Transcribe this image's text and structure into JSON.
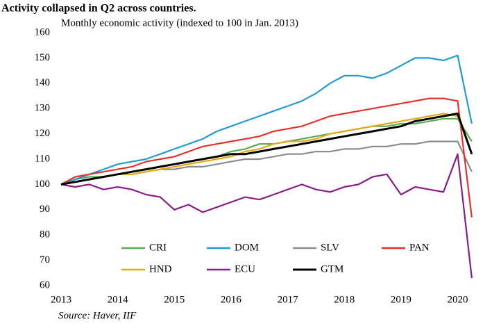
{
  "chart_data": {
    "type": "line",
    "title": "Activity collapsed in Q2 across countries.",
    "subtitle": "Monthly economic activity (indexed to 100 in Jan. 2013)",
    "source": "Source: Haver, IIF",
    "x": [
      2013,
      2013.25,
      2013.5,
      2013.75,
      2014,
      2014.25,
      2014.5,
      2014.75,
      2015,
      2015.25,
      2015.5,
      2015.75,
      2016,
      2016.25,
      2016.5,
      2016.75,
      2017,
      2017.25,
      2017.5,
      2017.75,
      2018,
      2018.25,
      2018.5,
      2018.75,
      2019,
      2019.25,
      2019.5,
      2019.75,
      2020,
      2020.25
    ],
    "series": [
      {
        "name": "CRI",
        "color": "#5aac50",
        "values": [
          100,
          102,
          103,
          103,
          104,
          105,
          106,
          107,
          108,
          109,
          110,
          111,
          113,
          114,
          116,
          116,
          117,
          118,
          119,
          120,
          121,
          122,
          123,
          123,
          124,
          124,
          125,
          126,
          126,
          117
        ]
      },
      {
        "name": "DOM",
        "color": "#1f9bd7",
        "values": [
          100,
          102,
          104,
          106,
          108,
          109,
          110,
          112,
          114,
          116,
          118,
          121,
          123,
          125,
          127,
          129,
          131,
          133,
          136,
          140,
          143,
          143,
          142,
          144,
          147,
          150,
          150,
          149,
          151,
          124
        ]
      },
      {
        "name": "SLV",
        "color": "#8c8c8c",
        "values": [
          100,
          101,
          102,
          103,
          104,
          104,
          105,
          106,
          106,
          107,
          107,
          108,
          109,
          110,
          110,
          111,
          112,
          112,
          113,
          113,
          114,
          114,
          115,
          115,
          116,
          116,
          117,
          117,
          117,
          105
        ]
      },
      {
        "name": "PAN",
        "color": "#e8302a",
        "values": [
          100,
          103,
          104,
          105,
          106,
          107,
          109,
          110,
          111,
          113,
          115,
          116,
          117,
          118,
          119,
          121,
          122,
          123,
          125,
          127,
          128,
          129,
          130,
          131,
          132,
          133,
          134,
          134,
          133,
          87
        ]
      },
      {
        "name": "HND",
        "color": "#e6a817",
        "values": [
          100,
          101,
          102,
          103,
          104,
          104,
          105,
          106,
          107,
          108,
          109,
          110,
          111,
          113,
          114,
          116,
          117,
          117,
          118,
          120,
          121,
          122,
          123,
          124,
          125,
          126,
          127,
          128,
          127,
          112
        ]
      },
      {
        "name": "ECU",
        "color": "#8b1a89",
        "values": [
          100,
          99,
          100,
          98,
          99,
          98,
          96,
          95,
          90,
          92,
          89,
          91,
          93,
          95,
          94,
          96,
          98,
          100,
          98,
          97,
          99,
          100,
          103,
          104,
          96,
          99,
          98,
          97,
          112,
          63
        ]
      },
      {
        "name": "GTM",
        "color": "#000000",
        "values": [
          100,
          101,
          102,
          103,
          104,
          105,
          106,
          107,
          108,
          109,
          110,
          111,
          112,
          112,
          113,
          114,
          115,
          116,
          117,
          118,
          119,
          120,
          121,
          122,
          123,
          125,
          126,
          127,
          128,
          112
        ]
      }
    ],
    "xlim": [
      2013,
      2020.3
    ],
    "xticks": [
      2013,
      2014,
      2015,
      2016,
      2017,
      2018,
      2019,
      2020
    ],
    "ylim": [
      60,
      160
    ],
    "yticks": [
      60,
      70,
      80,
      90,
      100,
      110,
      120,
      130,
      140,
      150,
      160
    ]
  }
}
